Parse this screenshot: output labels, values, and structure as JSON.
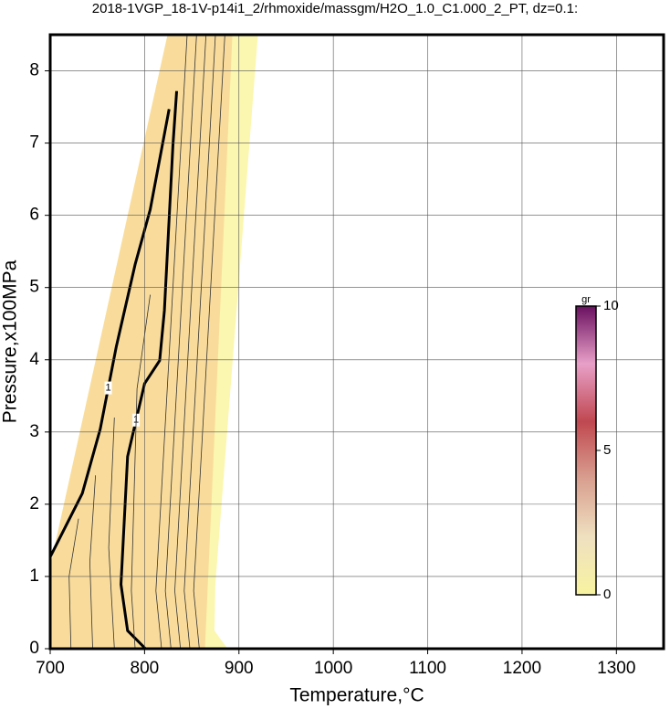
{
  "chart_data": {
    "type": "contour",
    "title": "2018-1VGP_18-1V-p14i1_2/rhmoxide/massgm/H2O_1.0_C1.000_2_PT, dz=0.1:",
    "x_label": "Temperature,°C",
    "y_label": "Pressure,x100MPa",
    "xlim": [
      700,
      1350
    ],
    "ylim": [
      0,
      8.5
    ],
    "xticks": [
      700,
      800,
      900,
      1000,
      1100,
      1200,
      1300
    ],
    "yticks": [
      0,
      1,
      2,
      3,
      4,
      5,
      6,
      7,
      8
    ],
    "grid": true,
    "regions": [
      {
        "color": "#fbf7b0",
        "x": [
          700,
          700,
          824,
          920,
          875,
          874,
          888
        ],
        "y": [
          0,
          1.14,
          8.48,
          8.48,
          0.89,
          0.25,
          0
        ]
      },
      {
        "color": "#f9dc9c",
        "x": [
          700,
          700,
          824,
          893,
          864
        ],
        "y": [
          0,
          1.14,
          8.48,
          8.48,
          0
        ]
      }
    ],
    "contours": [
      {
        "color": "#000000",
        "bold": true,
        "label": "1",
        "x": [
          801,
          782,
          775,
          782,
          800,
          816,
          821,
          830,
          834
        ],
        "y": [
          0,
          0.25,
          0.89,
          2.66,
          3.67,
          3.99,
          4.68,
          6.96,
          7.72
        ]
      },
      {
        "color": "#000000",
        "bold": true,
        "label": "1",
        "x": [
          700,
          734,
          753,
          770,
          790,
          806,
          826
        ],
        "y": [
          1.27,
          2.15,
          3.04,
          4.18,
          5.32,
          6.08,
          7.47
        ]
      },
      {
        "color": "#333333",
        "bold": false,
        "x": [
          818,
          812,
          845
        ],
        "y": [
          0,
          0.8,
          8.48
        ]
      },
      {
        "color": "#333333",
        "bold": false,
        "x": [
          828,
          822,
          855
        ],
        "y": [
          0,
          0.8,
          8.48
        ]
      },
      {
        "color": "#333333",
        "bold": false,
        "x": [
          838,
          832,
          865
        ],
        "y": [
          0,
          0.8,
          8.48
        ]
      },
      {
        "color": "#333333",
        "bold": false,
        "x": [
          848,
          842,
          875
        ],
        "y": [
          0,
          0.8,
          8.48
        ]
      },
      {
        "color": "#333333",
        "bold": false,
        "x": [
          858,
          852,
          885
        ],
        "y": [
          0,
          0.8,
          8.48
        ]
      },
      {
        "color": "#333333",
        "bold": false,
        "x": [
          722,
          720,
          730
        ],
        "y": [
          0,
          1.0,
          1.8
        ]
      },
      {
        "color": "#333333",
        "bold": false,
        "x": [
          745,
          742,
          748
        ],
        "y": [
          0,
          1.2,
          2.4
        ]
      },
      {
        "color": "#333333",
        "bold": false,
        "x": [
          768,
          762,
          768
        ],
        "y": [
          0,
          1.4,
          3.2
        ]
      },
      {
        "color": "#333333",
        "bold": false,
        "x": [
          790,
          786,
          792,
          806
        ],
        "y": [
          0,
          0.8,
          3.6,
          4.9
        ]
      }
    ],
    "colorbar": {
      "label": "gr",
      "lim": [
        0,
        10
      ],
      "ticks": [
        0,
        5,
        10
      ],
      "colors": [
        "#f7f3a0",
        "#efe0c0",
        "#d9a090",
        "#c04850",
        "#e8a0c8",
        "#6a1060"
      ]
    }
  }
}
